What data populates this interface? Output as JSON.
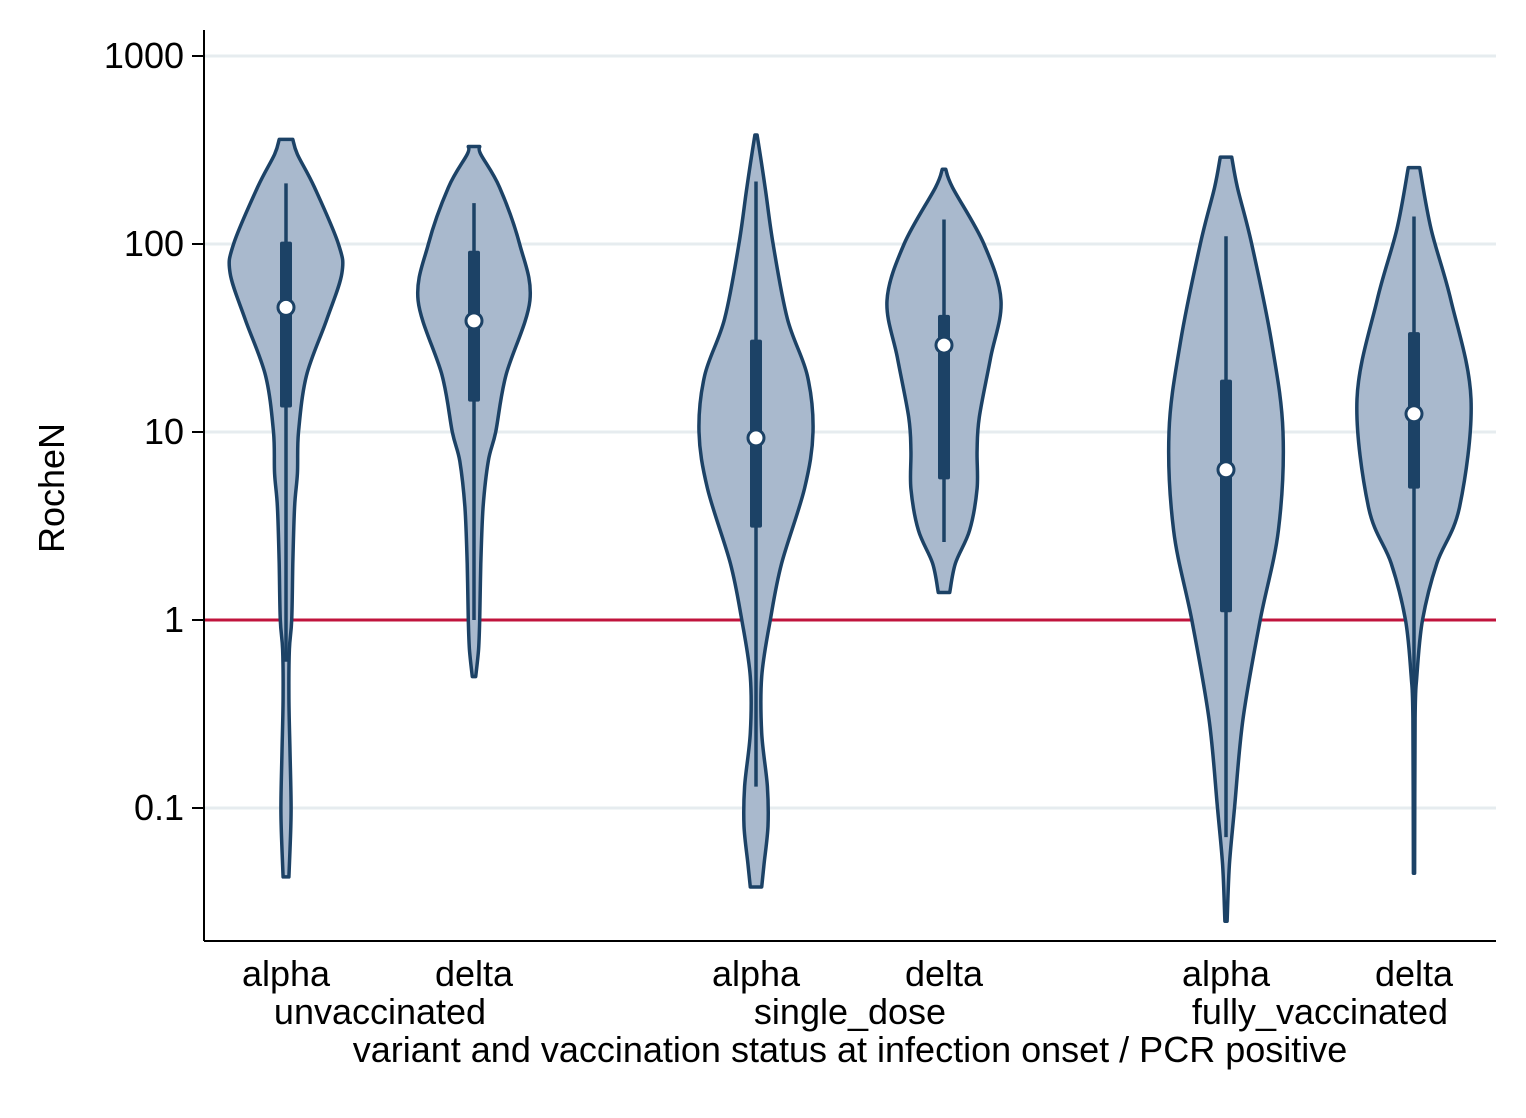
{
  "chart_data": {
    "type": "violin",
    "title": "",
    "ylabel": "RocheN",
    "xlabel": "variant and vaccination status at infection onset / PCR positive",
    "yscale": "log",
    "ylim": [
      0.02,
      1500
    ],
    "yticks": [
      {
        "value": 0.1,
        "label": "0.1"
      },
      {
        "value": 1,
        "label": "1"
      },
      {
        "value": 10,
        "label": "10"
      },
      {
        "value": 100,
        "label": "100"
      },
      {
        "value": 1000,
        "label": "1000"
      }
    ],
    "grid": true,
    "reference_line": {
      "value": 1,
      "color": "#c0143c"
    },
    "colors": {
      "violin_fill": "#a9b9cd",
      "violin_stroke": "#1c4266",
      "box": "#1c4266",
      "median": "#ffffff",
      "grid": "#e6ecef"
    },
    "groups": [
      {
        "label": "unvaccinated",
        "categories": [
          "alpha",
          "delta"
        ]
      },
      {
        "label": "single_dose",
        "categories": [
          "alpha",
          "delta"
        ]
      },
      {
        "label": "fully_vaccinated",
        "categories": [
          "alpha",
          "delta"
        ]
      }
    ],
    "violins": [
      {
        "group": "unvaccinated",
        "category": "alpha",
        "min": 0.043,
        "max": 360,
        "whisker_low": 0.6,
        "whisker_high": 210,
        "q1": 13.5,
        "median": 46,
        "q3": 103,
        "density": [
          [
            0.043,
            0.05
          ],
          [
            0.06,
            0.07
          ],
          [
            0.1,
            0.09
          ],
          [
            0.2,
            0.07
          ],
          [
            0.4,
            0.05
          ],
          [
            0.7,
            0.06
          ],
          [
            1,
            0.1
          ],
          [
            2,
            0.12
          ],
          [
            4,
            0.15
          ],
          [
            6,
            0.2
          ],
          [
            10,
            0.22
          ],
          [
            20,
            0.36
          ],
          [
            40,
            0.72
          ],
          [
            70,
            0.98
          ],
          [
            100,
            0.92
          ],
          [
            200,
            0.5
          ],
          [
            300,
            0.2
          ],
          [
            360,
            0.12
          ]
        ]
      },
      {
        "group": "unvaccinated",
        "category": "delta",
        "min": 0.5,
        "max": 330,
        "whisker_low": 1.0,
        "whisker_high": 165,
        "q1": 14.5,
        "median": 39,
        "q3": 92,
        "density": [
          [
            0.5,
            0.03
          ],
          [
            0.7,
            0.08
          ],
          [
            1,
            0.1
          ],
          [
            2,
            0.12
          ],
          [
            4,
            0.16
          ],
          [
            7,
            0.25
          ],
          [
            10,
            0.38
          ],
          [
            20,
            0.56
          ],
          [
            50,
            0.98
          ],
          [
            100,
            0.8
          ],
          [
            200,
            0.45
          ],
          [
            300,
            0.12
          ],
          [
            330,
            0.1
          ]
        ]
      },
      {
        "group": "single_dose",
        "category": "alpha",
        "min": 0.038,
        "max": 380,
        "whisker_low": 0.13,
        "whisker_high": 215,
        "q1": 3.1,
        "median": 9.3,
        "q3": 31,
        "density": [
          [
            0.038,
            0.1
          ],
          [
            0.05,
            0.14
          ],
          [
            0.08,
            0.21
          ],
          [
            0.13,
            0.2
          ],
          [
            0.25,
            0.1
          ],
          [
            0.5,
            0.1
          ],
          [
            1,
            0.25
          ],
          [
            2,
            0.45
          ],
          [
            5,
            0.85
          ],
          [
            10,
            1.0
          ],
          [
            20,
            0.9
          ],
          [
            40,
            0.55
          ],
          [
            100,
            0.3
          ],
          [
            200,
            0.16
          ],
          [
            380,
            0.02
          ]
        ]
      },
      {
        "group": "single_dose",
        "category": "delta",
        "min": 1.4,
        "max": 250,
        "whisker_low": 2.6,
        "whisker_high": 135,
        "q1": 5.6,
        "median": 29,
        "q3": 42,
        "density": [
          [
            1.4,
            0.1
          ],
          [
            2,
            0.2
          ],
          [
            3,
            0.45
          ],
          [
            5,
            0.58
          ],
          [
            8,
            0.58
          ],
          [
            12,
            0.62
          ],
          [
            25,
            0.82
          ],
          [
            50,
            1.0
          ],
          [
            100,
            0.7
          ],
          [
            200,
            0.15
          ],
          [
            250,
            0.03
          ]
        ]
      },
      {
        "group": "fully_vaccinated",
        "category": "alpha",
        "min": 0.025,
        "max": 290,
        "whisker_low": 0.07,
        "whisker_high": 110,
        "q1": 1.1,
        "median": 6.3,
        "q3": 19,
        "density": [
          [
            0.025,
            0.02
          ],
          [
            0.05,
            0.06
          ],
          [
            0.1,
            0.15
          ],
          [
            0.3,
            0.3
          ],
          [
            1,
            0.6
          ],
          [
            3,
            0.92
          ],
          [
            10,
            1.0
          ],
          [
            30,
            0.8
          ],
          [
            100,
            0.45
          ],
          [
            200,
            0.2
          ],
          [
            290,
            0.1
          ]
        ]
      },
      {
        "group": "fully_vaccinated",
        "category": "delta",
        "min": 0.045,
        "max": 255,
        "whisker_low": 0.045,
        "whisker_high": 140,
        "q1": 5.0,
        "median": 12.5,
        "q3": 34,
        "density": [
          [
            0.045,
            0.01
          ],
          [
            0.3,
            0.02
          ],
          [
            0.5,
            0.05
          ],
          [
            1,
            0.15
          ],
          [
            2,
            0.4
          ],
          [
            4,
            0.8
          ],
          [
            15,
            1.0
          ],
          [
            50,
            0.65
          ],
          [
            120,
            0.3
          ],
          [
            255,
            0.1
          ]
        ]
      }
    ]
  }
}
